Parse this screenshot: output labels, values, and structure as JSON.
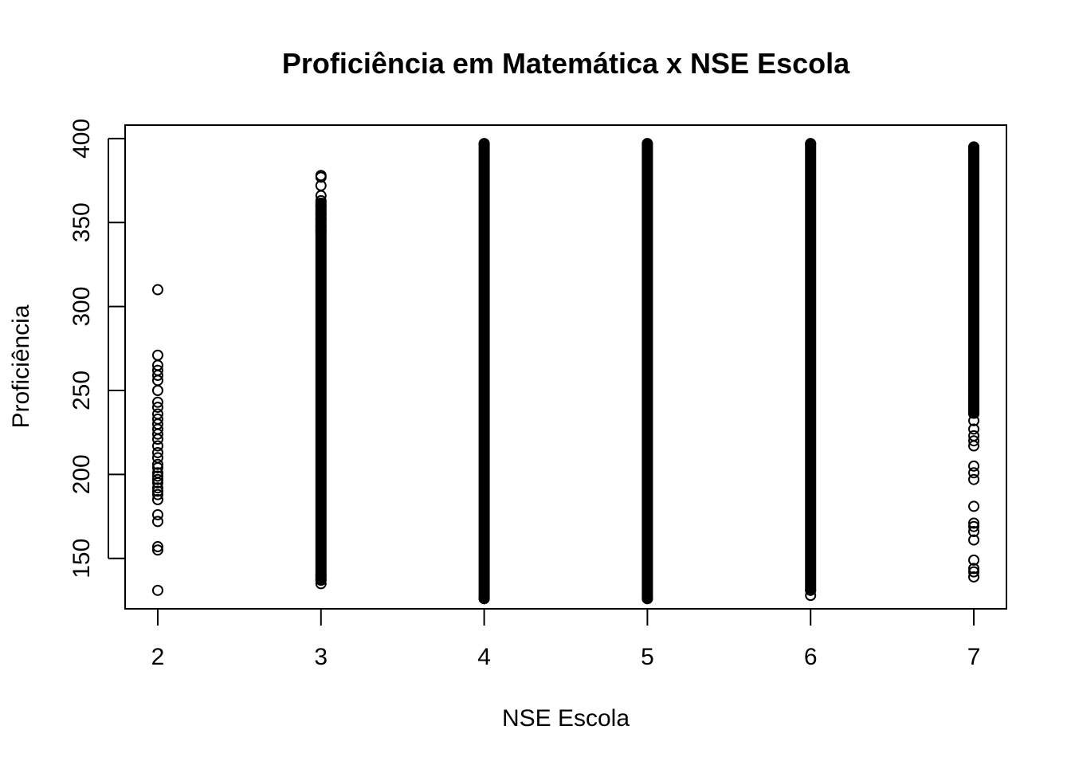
{
  "chart_data": {
    "type": "scatter",
    "title": "Proficiência em Matemática x NSE Escola",
    "xlabel": "NSE Escola",
    "ylabel": "Proficiência",
    "xlim": [
      1.8,
      7.2
    ],
    "ylim": [
      120,
      408
    ],
    "xticks": [
      2,
      3,
      4,
      5,
      6,
      7
    ],
    "yticks": [
      150,
      200,
      250,
      300,
      350,
      400
    ],
    "grid": false,
    "legend": "none",
    "point_shape": "open-circle",
    "point_color": "#000000",
    "groups": [
      {
        "x": 2,
        "points": [
          131,
          155,
          157,
          172,
          176,
          185,
          188,
          190,
          192,
          195,
          197,
          199,
          201,
          204,
          206,
          210,
          213,
          217,
          221,
          224,
          227,
          230,
          233,
          236,
          240,
          243,
          250,
          256,
          259,
          262,
          265,
          271,
          310
        ],
        "dense_range": null
      },
      {
        "x": 3,
        "points": [
          135,
          137,
          140,
          345,
          348,
          352,
          355,
          360,
          363,
          366,
          372,
          377,
          378
        ],
        "dense_range": [
          137,
          362
        ]
      },
      {
        "x": 4,
        "points": [
          126,
          397
        ],
        "dense_range": [
          126,
          397
        ]
      },
      {
        "x": 5,
        "points": [
          126,
          397
        ],
        "dense_range": [
          126,
          397
        ]
      },
      {
        "x": 6,
        "points": [
          128,
          131,
          397
        ],
        "dense_range": [
          131,
          397
        ]
      },
      {
        "x": 7,
        "points": [
          139,
          142,
          144,
          149,
          161,
          166,
          169,
          171,
          181,
          197,
          201,
          205,
          217,
          220,
          223,
          227,
          232,
          237,
          241,
          246,
          250,
          254,
          258,
          262,
          395
        ],
        "dense_range": [
          236,
          395
        ]
      }
    ]
  }
}
